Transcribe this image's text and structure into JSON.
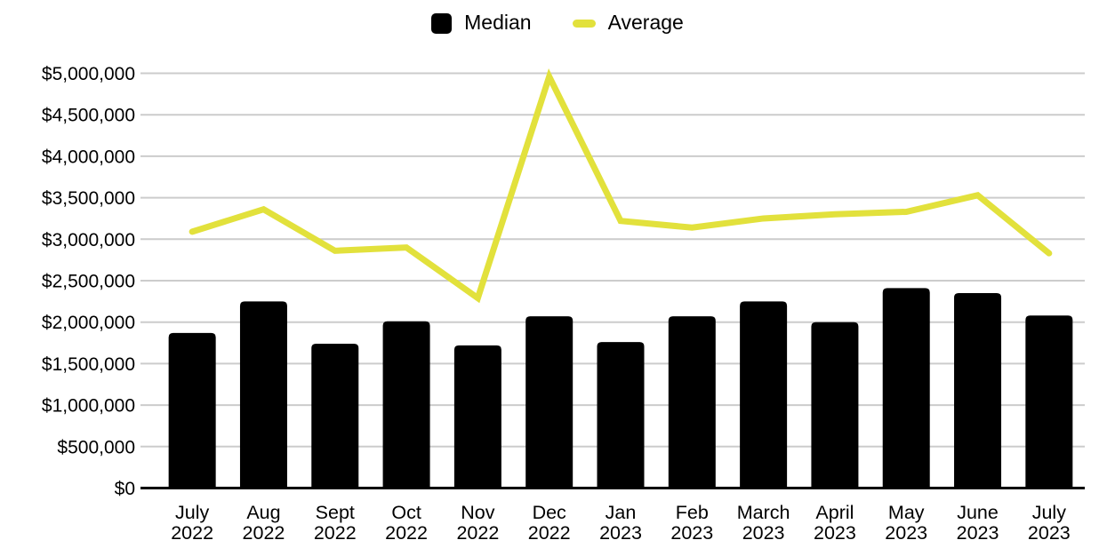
{
  "chart_data": {
    "type": "combo-bar-line",
    "title": "",
    "categories": [
      {
        "month": "July",
        "year": "2022"
      },
      {
        "month": "Aug",
        "year": "2022"
      },
      {
        "month": "Sept",
        "year": "2022"
      },
      {
        "month": "Oct",
        "year": "2022"
      },
      {
        "month": "Nov",
        "year": "2022"
      },
      {
        "month": "Dec",
        "year": "2022"
      },
      {
        "month": "Jan",
        "year": "2023"
      },
      {
        "month": "Feb",
        "year": "2023"
      },
      {
        "month": "March",
        "year": "2023"
      },
      {
        "month": "April",
        "year": "2023"
      },
      {
        "month": "May",
        "year": "2023"
      },
      {
        "month": "June",
        "year": "2023"
      },
      {
        "month": "July",
        "year": "2023"
      }
    ],
    "series": [
      {
        "name": "Median",
        "type": "bar",
        "color": "#000000",
        "values": [
          1870000,
          2250000,
          1740000,
          2010000,
          1720000,
          2070000,
          1760000,
          2070000,
          2250000,
          2000000,
          2410000,
          2350000,
          2080000
        ]
      },
      {
        "name": "Average",
        "type": "line",
        "color": "#e2e13c",
        "values": [
          3090000,
          3360000,
          2860000,
          2900000,
          2290000,
          4960000,
          3220000,
          3140000,
          3250000,
          3300000,
          3330000,
          3530000,
          2830000
        ]
      }
    ],
    "y_axis": {
      "min": 0,
      "max": 5000000,
      "step": 500000,
      "tick_labels": [
        "$0",
        "$500,000",
        "$1,000,000",
        "$1,500,000",
        "$2,000,000",
        "$2,500,000",
        "$3,000,000",
        "$3,500,000",
        "$4,000,000",
        "$4,500,000",
        "$5,000,000"
      ]
    },
    "legend_position": "top",
    "grid": true,
    "colors": {
      "background": "#ffffff",
      "grid_color": "#cccccc",
      "axis_color": "#000000",
      "text_color": "#000000"
    }
  }
}
